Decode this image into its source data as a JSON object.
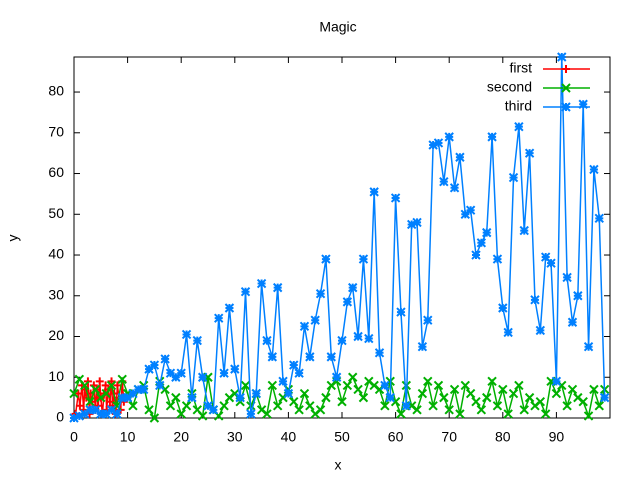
{
  "chart_data": {
    "type": "line",
    "title": "Magic",
    "xlabel": "x",
    "ylabel": "y",
    "xlim": [
      0,
      100
    ],
    "ylim": [
      0,
      88.6
    ],
    "xticks": [
      0,
      10,
      20,
      30,
      40,
      50,
      60,
      70,
      80,
      90
    ],
    "yticks": [
      0,
      10,
      20,
      30,
      40,
      50,
      60,
      70,
      80
    ],
    "legend": "upper right",
    "series": [
      {
        "name": "first",
        "color": "#ff0000",
        "marker": "plus",
        "x": [
          0.3,
          0.8,
          1.1,
          1.5,
          1.8,
          2.0,
          2.3,
          2.6,
          2.9,
          3.1,
          3.4,
          3.7,
          4.0,
          4.2,
          4.5,
          4.8,
          5.0,
          5.3,
          5.6,
          5.9,
          6.1,
          6.4,
          6.7,
          7.0,
          7.2,
          7.5,
          7.8,
          8.1,
          8.4,
          8.7,
          9.0,
          9.3
        ],
        "values": [
          1,
          6,
          3,
          8,
          2,
          7,
          5,
          9,
          1,
          6,
          4,
          8,
          2,
          7,
          3,
          9,
          5,
          1,
          6,
          8,
          2,
          7,
          4,
          9,
          3,
          6,
          1,
          8,
          5,
          2,
          9,
          4
        ]
      },
      {
        "name": "second",
        "color": "#00b000",
        "marker": "cross",
        "x": [
          0,
          1,
          2,
          3,
          4,
          5,
          6,
          7,
          8,
          9,
          10,
          11,
          12,
          13,
          14,
          15,
          16,
          17,
          18,
          19,
          20,
          21,
          22,
          23,
          24,
          25,
          26,
          27,
          28,
          29,
          30,
          31,
          32,
          33,
          34,
          35,
          36,
          37,
          38,
          39,
          40,
          41,
          42,
          43,
          44,
          45,
          46,
          47,
          48,
          49,
          50,
          51,
          52,
          53,
          54,
          55,
          56,
          57,
          58,
          59,
          60,
          61,
          62,
          63,
          64,
          65,
          66,
          67,
          68,
          69,
          70,
          71,
          72,
          73,
          74,
          75,
          76,
          77,
          78,
          79,
          80,
          81,
          82,
          83,
          84,
          85,
          86,
          87,
          88,
          89,
          90,
          91,
          92,
          93,
          94,
          95,
          96,
          97,
          98,
          99
        ],
        "values": [
          6,
          9.5,
          8,
          4,
          7,
          5,
          6,
          8,
          3,
          9.5,
          6,
          3,
          7,
          8,
          2,
          0,
          9,
          7,
          3,
          5,
          1,
          3,
          6,
          2,
          0.5,
          10,
          2,
          0.5,
          3,
          5,
          6,
          4,
          8,
          3,
          6,
          2,
          1,
          8,
          3,
          5,
          7,
          4,
          2,
          6,
          3,
          1,
          2,
          5,
          8,
          9,
          4,
          8,
          10,
          7,
          5,
          9,
          8,
          7,
          3,
          9,
          4,
          1,
          8,
          3,
          2,
          6,
          9,
          3,
          8,
          5,
          2,
          7,
          1,
          8,
          6,
          4,
          2,
          5,
          9,
          3,
          7,
          1,
          6,
          8,
          2,
          5,
          3,
          4,
          1,
          9,
          6,
          8,
          3,
          7,
          5,
          4,
          0.5,
          7,
          3,
          7
        ]
      },
      {
        "name": "third",
        "color": "#0080ff",
        "marker": "star",
        "x": [
          0,
          1,
          2,
          3,
          4,
          5,
          6,
          7,
          8,
          9,
          10,
          11,
          12,
          13,
          14,
          15,
          16,
          17,
          18,
          19,
          20,
          21,
          22,
          23,
          24,
          25,
          26,
          27,
          28,
          29,
          30,
          31,
          32,
          33,
          34,
          35,
          36,
          37,
          38,
          39,
          40,
          41,
          42,
          43,
          44,
          45,
          46,
          47,
          48,
          49,
          50,
          51,
          52,
          53,
          54,
          55,
          56,
          57,
          58,
          59,
          60,
          61,
          62,
          63,
          64,
          65,
          66,
          67,
          68,
          69,
          70,
          71,
          72,
          73,
          74,
          75,
          76,
          77,
          78,
          79,
          80,
          81,
          82,
          83,
          84,
          85,
          86,
          87,
          88,
          89,
          90,
          91,
          92,
          93,
          94,
          95,
          96,
          97,
          98,
          99
        ],
        "values": [
          0,
          0.5,
          1,
          2,
          2,
          1,
          1,
          2,
          1,
          5,
          5,
          6,
          7,
          7,
          12,
          13,
          8,
          14.5,
          11,
          10,
          11,
          20.5,
          5,
          19,
          10,
          3,
          2,
          24.5,
          11,
          27,
          12,
          5,
          31,
          1,
          6,
          33,
          19,
          15,
          32,
          9,
          6,
          13,
          11,
          22.5,
          15,
          24,
          30.5,
          39,
          15,
          10,
          19,
          28.5,
          32,
          20,
          39,
          19.5,
          55.5,
          16,
          8,
          5,
          54,
          26,
          3,
          47.5,
          48,
          17.5,
          24,
          67,
          67.5,
          58,
          69,
          56.5,
          64,
          50,
          51,
          40,
          43,
          45.5,
          69,
          39,
          27,
          21,
          59,
          71.5,
          46,
          65,
          29,
          21.5,
          39.5,
          38,
          9,
          88.6,
          34.5,
          23.5,
          30,
          77,
          17.5,
          61,
          49,
          5
        ]
      }
    ]
  }
}
